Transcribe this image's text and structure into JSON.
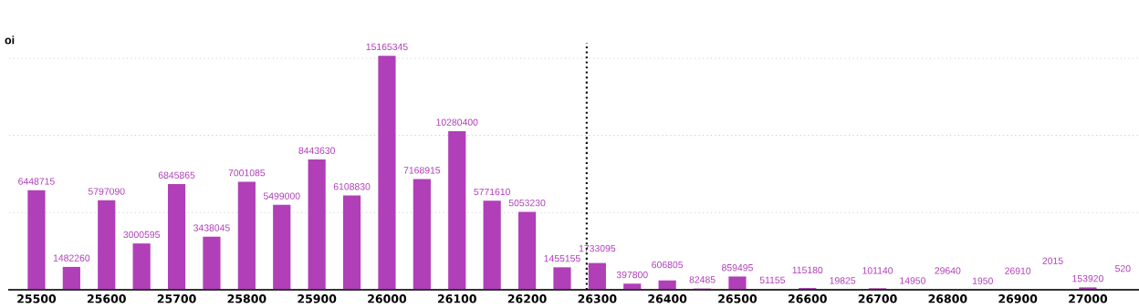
{
  "chart_data": {
    "type": "bar",
    "title": "oi",
    "x": [
      25500,
      25550,
      25600,
      25650,
      25700,
      25750,
      25800,
      25850,
      25900,
      25950,
      26000,
      26050,
      26100,
      26150,
      26200,
      26250,
      26300,
      26350,
      26400,
      26450,
      26500,
      26550,
      26600,
      26650,
      26700,
      26750,
      26800,
      26850,
      26900,
      26950,
      27000,
      27050
    ],
    "values": [
      6448715,
      1482260,
      5797090,
      3000595,
      6845865,
      3438045,
      7001085,
      5499000,
      8443630,
      6108830,
      15165345,
      7168915,
      10280400,
      5771610,
      5053230,
      1455155,
      1733095,
      397800,
      606805,
      82485,
      859495,
      51155,
      115180,
      19825,
      101140,
      14950,
      29640,
      1950,
      26910,
      2015,
      153920,
      520
    ],
    "color": "#b03fb8",
    "data_labels": true,
    "xlim": [
      25461,
      27073
    ],
    "xticks": [
      25500,
      25600,
      25700,
      25800,
      25900,
      26000,
      26100,
      26200,
      26300,
      26400,
      26500,
      26600,
      26700,
      26800,
      26900,
      27000
    ],
    "ylim": [
      0,
      16000000
    ],
    "yticks": [
      {
        "value": 0,
        "label": null
      },
      {
        "value": 5000000,
        "label": null
      },
      {
        "value": 10000000,
        "label": null
      },
      {
        "value": 15000000,
        "label": null
      }
    ],
    "tick_labels": "x",
    "grid": "y",
    "ref_lines": [
      {
        "axis": "x",
        "value": 26285,
        "color": "#000000",
        "line_style": "dotted"
      }
    ]
  }
}
